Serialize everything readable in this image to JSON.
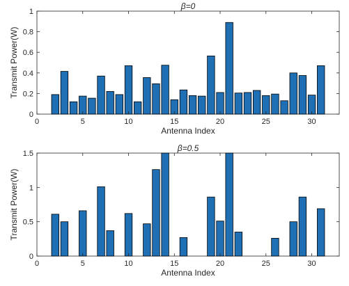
{
  "chart_data": [
    {
      "type": "bar",
      "title": "β=0",
      "xlabel": "Antenna Index",
      "ylabel": "Transmit Power(W)",
      "xlim": [
        0,
        33
      ],
      "ylim": [
        0,
        1
      ],
      "xticks": [
        0,
        5,
        10,
        15,
        20,
        25,
        30
      ],
      "yticks": [
        0,
        0.2,
        0.4,
        0.6,
        0.8,
        1
      ],
      "ytick_labels": [
        "0",
        "0.2",
        "0.4",
        "0.6",
        "0.8",
        "1"
      ],
      "bar_color": "#1f6fb4",
      "x": [
        2,
        3,
        4,
        5,
        6,
        7,
        8,
        9,
        10,
        11,
        12,
        13,
        14,
        15,
        16,
        17,
        18,
        19,
        20,
        21,
        22,
        23,
        24,
        25,
        26,
        27,
        28,
        29,
        30,
        31
      ],
      "values": [
        0.19,
        0.415,
        0.12,
        0.175,
        0.155,
        0.37,
        0.22,
        0.19,
        0.47,
        0.12,
        0.355,
        0.295,
        0.475,
        0.14,
        0.235,
        0.18,
        0.175,
        0.565,
        0.21,
        0.89,
        0.205,
        0.21,
        0.23,
        0.18,
        0.195,
        0.13,
        0.4,
        0.375,
        0.185,
        0.47
      ]
    },
    {
      "type": "bar",
      "title": "β=0.5",
      "xlabel": "Antenna Index",
      "ylabel": "Transmit Power(W)",
      "xlim": [
        0,
        33
      ],
      "ylim": [
        0,
        1.5
      ],
      "xticks": [
        0,
        5,
        10,
        15,
        20,
        25,
        30
      ],
      "yticks": [
        0,
        0.5,
        1,
        1.5
      ],
      "ytick_labels": [
        "0",
        "0.5",
        "1",
        "1.5"
      ],
      "bar_color": "#1f6fb4",
      "x": [
        2,
        3,
        5,
        7,
        8,
        10,
        12,
        13,
        14,
        16,
        19,
        20,
        21,
        22,
        26,
        28,
        29,
        31
      ],
      "values": [
        0.61,
        0.5,
        0.66,
        1.01,
        0.37,
        0.62,
        0.47,
        1.26,
        1.5,
        0.27,
        0.86,
        0.51,
        1.5,
        0.35,
        0.26,
        0.5,
        0.86,
        0.69
      ]
    }
  ]
}
